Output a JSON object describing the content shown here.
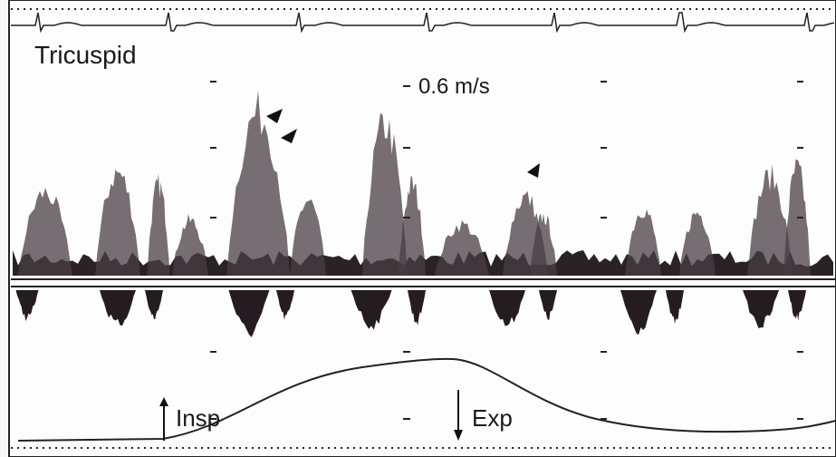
{
  "title": "Tricuspid",
  "scale_label": "0.6 m/s",
  "insp_label": "Insp",
  "exp_label": "Exp"
}
